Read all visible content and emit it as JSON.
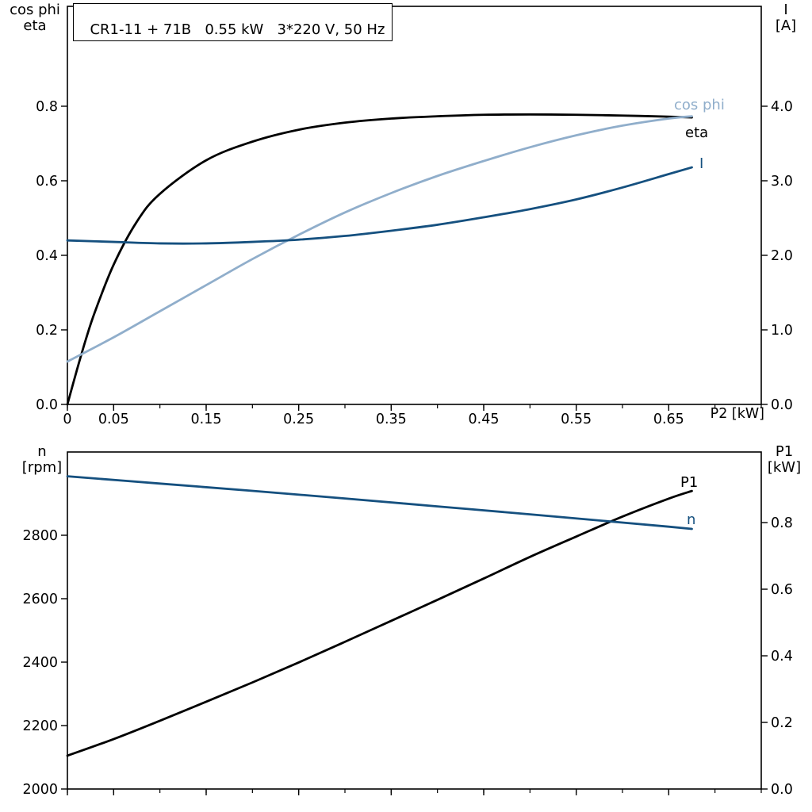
{
  "chart_data": [
    {
      "panel": "motor-electrical",
      "type": "line",
      "title": "CR1-11 + 71B   0.55 kW   3*220 V, 50 Hz",
      "grid": false,
      "x": {
        "label": "P2 [kW]",
        "min": 0,
        "max": 0.75,
        "tick_step": 0.05,
        "labeled_ticks": [
          {
            "v": 0,
            "t": "0"
          },
          {
            "v": 0.05,
            "t": "0.05"
          },
          {
            "v": 0.15,
            "t": "0.15"
          },
          {
            "v": 0.25,
            "t": "0.25"
          },
          {
            "v": 0.35,
            "t": "0.35"
          },
          {
            "v": 0.45,
            "t": "0.45"
          },
          {
            "v": 0.55,
            "t": "0.55"
          },
          {
            "v": 0.65,
            "t": "0.65"
          }
        ]
      },
      "y_left": {
        "label": "cos phi / eta",
        "title_lines": [
          "cos phi",
          "eta"
        ],
        "min": 0,
        "max": 1.068,
        "ticks": [
          {
            "v": 0.0,
            "t": "0.0"
          },
          {
            "v": 0.2,
            "t": "0.2"
          },
          {
            "v": 0.4,
            "t": "0.4"
          },
          {
            "v": 0.6,
            "t": "0.6"
          },
          {
            "v": 0.8,
            "t": "0.8"
          }
        ]
      },
      "y_right": {
        "label": "I [A]",
        "title_lines": [
          "I",
          "[A]"
        ],
        "min": 0,
        "max": 5.34,
        "ticks": [
          {
            "v": 0.0,
            "t": "0.0"
          },
          {
            "v": 1.0,
            "t": "1.0"
          },
          {
            "v": 2.0,
            "t": "2.0"
          },
          {
            "v": 3.0,
            "t": "3.0"
          },
          {
            "v": 4.0,
            "t": "4.0"
          }
        ]
      },
      "series": [
        {
          "id": "eta",
          "name": "eta",
          "axis": "left",
          "color": "#000000",
          "x": [
            0,
            0.01,
            0.02,
            0.03,
            0.05,
            0.075,
            0.1,
            0.15,
            0.2,
            0.25,
            0.3,
            0.35,
            0.4,
            0.45,
            0.5,
            0.55,
            0.6,
            0.65,
            0.675
          ],
          "y": [
            0,
            0.09,
            0.175,
            0.25,
            0.375,
            0.49,
            0.565,
            0.655,
            0.705,
            0.737,
            0.756,
            0.767,
            0.773,
            0.777,
            0.778,
            0.777,
            0.775,
            0.772,
            0.77
          ]
        },
        {
          "id": "cos-phi",
          "name": "cos phi",
          "axis": "left",
          "color": "#90AECB",
          "x": [
            0,
            0.05,
            0.1,
            0.15,
            0.2,
            0.25,
            0.3,
            0.35,
            0.4,
            0.45,
            0.5,
            0.55,
            0.6,
            0.65,
            0.675
          ],
          "y": [
            0.115,
            0.18,
            0.25,
            0.32,
            0.39,
            0.455,
            0.515,
            0.567,
            0.613,
            0.653,
            0.69,
            0.722,
            0.748,
            0.767,
            0.773
          ]
        },
        {
          "id": "current",
          "name": "I",
          "axis": "right",
          "color": "#15507F",
          "x": [
            0,
            0.05,
            0.1,
            0.15,
            0.2,
            0.25,
            0.3,
            0.35,
            0.4,
            0.45,
            0.5,
            0.55,
            0.6,
            0.65,
            0.675
          ],
          "y": [
            2.2,
            2.18,
            2.16,
            2.16,
            2.18,
            2.21,
            2.26,
            2.33,
            2.41,
            2.51,
            2.62,
            2.75,
            2.91,
            3.09,
            3.18
          ]
        }
      ]
    },
    {
      "panel": "speed-input-power",
      "type": "line",
      "title": "",
      "grid": false,
      "x": {
        "label": "",
        "min": 0,
        "max": 0.75,
        "tick_step": 0.05,
        "labeled_ticks": [
          {
            "v": 0,
            "t": "0"
          },
          {
            "v": 0.05,
            "t": "0.05"
          },
          {
            "v": 0.15,
            "t": "0.15"
          },
          {
            "v": 0.25,
            "t": "0.25"
          },
          {
            "v": 0.35,
            "t": "0.35"
          },
          {
            "v": 0.45,
            "t": "0.45"
          },
          {
            "v": 0.55,
            "t": "0.55"
          },
          {
            "v": 0.65,
            "t": "0.65"
          }
        ]
      },
      "y_left": {
        "label": "n [rpm]",
        "title_lines": [
          "n",
          "[rpm]"
        ],
        "min": 2000,
        "max": 3062.5,
        "ticks": [
          {
            "v": 2000,
            "t": "2000"
          },
          {
            "v": 2200,
            "t": "2200"
          },
          {
            "v": 2400,
            "t": "2400"
          },
          {
            "v": 2600,
            "t": "2600"
          },
          {
            "v": 2800,
            "t": "2800"
          }
        ]
      },
      "y_right": {
        "label": "P1 [kW]",
        "title_lines": [
          "P1",
          "[kW]"
        ],
        "min": 0,
        "max": 1.012,
        "ticks": [
          {
            "v": 0.0,
            "t": "0.0"
          },
          {
            "v": 0.2,
            "t": "0.2"
          },
          {
            "v": 0.4,
            "t": "0.4"
          },
          {
            "v": 0.6,
            "t": "0.6"
          },
          {
            "v": 0.8,
            "t": "0.8"
          }
        ]
      },
      "series": [
        {
          "id": "input-power",
          "name": "P1",
          "axis": "right",
          "color": "#000000",
          "x": [
            0,
            0.05,
            0.1,
            0.15,
            0.2,
            0.25,
            0.3,
            0.35,
            0.4,
            0.45,
            0.5,
            0.55,
            0.6,
            0.65,
            0.675
          ],
          "y": [
            0.1,
            0.15,
            0.205,
            0.262,
            0.32,
            0.38,
            0.442,
            0.505,
            0.568,
            0.632,
            0.697,
            0.758,
            0.818,
            0.872,
            0.895
          ]
        },
        {
          "id": "speed",
          "name": "n",
          "axis": "left",
          "color": "#15507F",
          "x": [
            0,
            0.1,
            0.2,
            0.3,
            0.4,
            0.5,
            0.6,
            0.65,
            0.675
          ],
          "y": [
            2986,
            2963,
            2940,
            2916,
            2891,
            2866,
            2840,
            2827,
            2820
          ]
        }
      ]
    }
  ]
}
